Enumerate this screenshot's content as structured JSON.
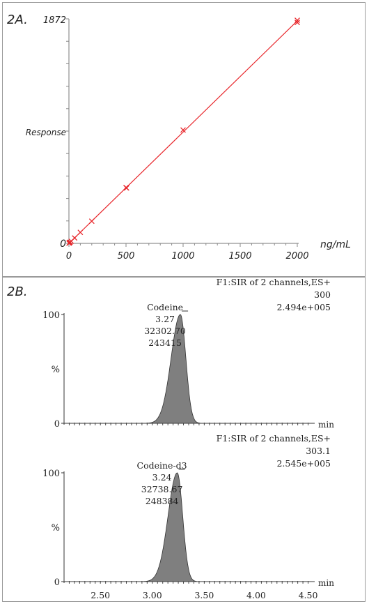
{
  "chart_data": [
    {
      "id": "2A",
      "type": "scatter",
      "panel_label": "2A.",
      "y_top_label": "1872",
      "y_zero_label": "0",
      "ylabel": "Response",
      "xlabel": "ng/mL",
      "xlim": [
        0,
        2000
      ],
      "ylim": [
        0,
        1872
      ],
      "x_ticks": [
        "0",
        "500",
        "1000",
        "1500",
        "2000"
      ],
      "fit_line": {
        "x": [
          0,
          2000
        ],
        "y": [
          0,
          1855
        ]
      },
      "points": [
        {
          "x": 1,
          "y": 2
        },
        {
          "x": 2,
          "y": 3
        },
        {
          "x": 5,
          "y": 6
        },
        {
          "x": 10,
          "y": 10
        },
        {
          "x": 20,
          "y": 18
        },
        {
          "x": 50,
          "y": 45
        },
        {
          "x": 100,
          "y": 92
        },
        {
          "x": 200,
          "y": 185
        },
        {
          "x": 500,
          "y": 465
        },
        {
          "x": 505,
          "y": 462
        },
        {
          "x": 1000,
          "y": 945
        },
        {
          "x": 2000,
          "y": 1860
        },
        {
          "x": 2000,
          "y": 1842
        }
      ],
      "line_color": "#e8262b",
      "marker_color": "#e8262b"
    },
    {
      "id": "2B",
      "type": "area",
      "panel_label": "2B.",
      "traces": [
        {
          "header": [
            "F1:SIR of 2 channels,ES+",
            "300",
            "2.494e+005"
          ],
          "peak_labels": [
            "Codeine",
            "3.27",
            "32302.70",
            "243415"
          ],
          "peak_rt": 3.27,
          "peak_width": 0.07,
          "y_top_label": "100",
          "y_mid_label": "%",
          "y_zero_label": "0",
          "x_unit_label": "min"
        },
        {
          "header": [
            "F1:SIR of 2 channels,ES+",
            "303.1",
            "2.545e+005"
          ],
          "peak_labels": [
            "Codeine-d3",
            "3.24",
            "32738.67",
            "248384"
          ],
          "peak_rt": 3.24,
          "peak_width": 0.07,
          "y_top_label": "100",
          "y_mid_label": "%",
          "y_zero_label": "0",
          "x_unit_label": "min"
        }
      ],
      "xlim": [
        2.15,
        4.55
      ],
      "x_ticks": [
        "2.50",
        "3.00",
        "3.50",
        "4.00",
        "4.50"
      ],
      "peak_fill": "#7f7f7f"
    }
  ]
}
